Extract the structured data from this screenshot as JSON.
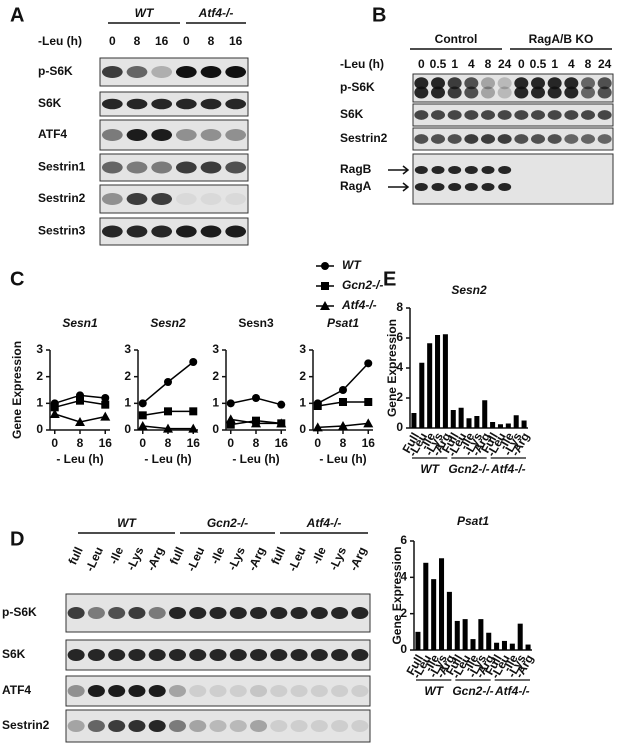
{
  "panel_labels": [
    "A",
    "B",
    "C",
    "D",
    "E"
  ],
  "blot_a": {
    "time_label": "-Leu (h)",
    "groups": [
      "WT",
      "Atf4-/-"
    ],
    "lanes": [
      "0",
      "8",
      "16",
      "0",
      "8",
      "16"
    ],
    "rows": [
      "p-S6K",
      "S6K",
      "ATF4",
      "Sestrin1",
      "Sestrin2",
      "Sestrin3"
    ]
  },
  "blot_b": {
    "time_label": "-Leu (h)",
    "groups": [
      "Control",
      "RagA/B KO"
    ],
    "lanes": [
      "0",
      "0.5",
      "1",
      "4",
      "8",
      "24",
      "0",
      "0.5",
      "1",
      "4",
      "8",
      "24"
    ],
    "rows": [
      "p-S6K",
      "S6K",
      "Sestrin2",
      "RagB",
      "RagA"
    ]
  },
  "blot_d": {
    "groups": [
      "WT",
      "Gcn2-/-",
      "Atf4-/-"
    ],
    "lanes": [
      "full",
      "-Leu",
      "-Ile",
      "-Lys",
      "-Arg",
      "full",
      "-Leu",
      "-Ile",
      "-Lys",
      "-Arg",
      "full",
      "-Leu",
      "-Ile",
      "-Lys",
      "-Arg"
    ],
    "rows": [
      "p-S6K",
      "S6K",
      "ATF4",
      "Sestrin2"
    ]
  },
  "chart_data": [
    {
      "type": "line",
      "title": "Sesn1",
      "title_italic": true,
      "y_label": "Gene Expression",
      "x_label": "- Leu (h)",
      "x": [
        0,
        8,
        16
      ],
      "xlim": [
        -1.5,
        17.5
      ],
      "xticks": [
        0,
        8,
        16
      ],
      "ylim": [
        0,
        3
      ],
      "yticks": [
        0,
        1,
        2,
        3
      ],
      "series": [
        {
          "name": "WT",
          "color": "#000000",
          "marker": "circle",
          "values": [
            1.0,
            1.3,
            1.2
          ]
        },
        {
          "name": "Gcn2-/-",
          "color": "#000000",
          "marker": "square",
          "values": [
            0.85,
            1.1,
            0.95
          ]
        },
        {
          "name": "Atf4-/-",
          "color": "#000000",
          "marker": "triangle",
          "values": [
            0.6,
            0.3,
            0.5
          ]
        }
      ]
    },
    {
      "type": "line",
      "title": "Sesn2",
      "title_italic": true,
      "x_label": "- Leu (h)",
      "x": [
        0,
        8,
        16
      ],
      "xlim": [
        -1.5,
        17.5
      ],
      "xticks": [
        0,
        8,
        16
      ],
      "ylim": [
        0,
        3
      ],
      "yticks": [
        0,
        1,
        2,
        3
      ],
      "series": [
        {
          "name": "WT",
          "color": "#000000",
          "marker": "circle",
          "values": [
            1.0,
            1.8,
            2.55
          ]
        },
        {
          "name": "Gcn2-/-",
          "color": "#000000",
          "marker": "square",
          "values": [
            0.55,
            0.7,
            0.7
          ]
        },
        {
          "name": "Atf4-/-",
          "color": "#000000",
          "marker": "triangle",
          "values": [
            0.15,
            0.05,
            0.05
          ]
        }
      ]
    },
    {
      "type": "line",
      "title": "Sesn3",
      "title_italic": false,
      "x_label": "- Leu (h)",
      "x": [
        0,
        8,
        16
      ],
      "xlim": [
        -1.5,
        17.5
      ],
      "xticks": [
        0,
        8,
        16
      ],
      "ylim": [
        0,
        3
      ],
      "yticks": [
        0,
        1,
        2,
        3
      ],
      "series": [
        {
          "name": "WT",
          "color": "#000000",
          "marker": "circle",
          "values": [
            1.0,
            1.2,
            0.95
          ]
        },
        {
          "name": "Gcn2-/-",
          "color": "#000000",
          "marker": "square",
          "values": [
            0.2,
            0.35,
            0.25
          ]
        },
        {
          "name": "Atf4-/-",
          "color": "#000000",
          "marker": "triangle",
          "values": [
            0.4,
            0.25,
            0.25
          ]
        }
      ]
    },
    {
      "type": "line",
      "title": "Psat1",
      "title_italic": true,
      "x_label": "- Leu (h)",
      "x": [
        0,
        8,
        16
      ],
      "xlim": [
        -1.5,
        17.5
      ],
      "xticks": [
        0,
        8,
        16
      ],
      "ylim": [
        0,
        3
      ],
      "yticks": [
        0,
        1,
        2,
        3
      ],
      "series": [
        {
          "name": "WT",
          "color": "#000000",
          "marker": "circle",
          "values": [
            1.0,
            1.5,
            2.5
          ]
        },
        {
          "name": "Gcn2-/-",
          "color": "#000000",
          "marker": "square",
          "values": [
            0.9,
            1.05,
            1.05
          ]
        },
        {
          "name": "Atf4-/-",
          "color": "#000000",
          "marker": "triangle",
          "values": [
            0.1,
            0.15,
            0.25
          ]
        }
      ]
    },
    {
      "type": "bar",
      "title": "Sesn2",
      "title_italic": true,
      "y_label": "Gene Expression",
      "color": "#000000",
      "categories": [
        "Full",
        "-Leu",
        "-Ile",
        "-Lys",
        "-Arg",
        "Full",
        "-Leu",
        "-Ile",
        "-Lys",
        "-Arg",
        "Full",
        "-Leu",
        "-Ile",
        "-Lys",
        "-Arg"
      ],
      "groups": [
        "WT",
        "Gcn2-/-",
        "Atf4-/-"
      ],
      "values": [
        1.0,
        4.35,
        5.65,
        6.2,
        6.25,
        1.2,
        1.35,
        0.65,
        0.8,
        1.85,
        0.4,
        0.25,
        0.3,
        0.85,
        0.5
      ],
      "ylim": [
        0,
        8
      ],
      "yticks": [
        0,
        2,
        4,
        6,
        8
      ]
    },
    {
      "type": "bar",
      "title": "Psat1",
      "title_italic": true,
      "y_label": "Gene Expression",
      "color": "#000000",
      "categories": [
        "Full",
        "-Leu",
        "-Ile",
        "-Lys",
        "-Arg",
        "Full",
        "-Leu",
        "-Ile",
        "-Lys",
        "-Arg",
        "Full",
        "-Leu",
        "-Ile",
        "-Lys",
        "-Arg"
      ],
      "groups": [
        "WT",
        "Gcn2-/-",
        "Atf4-/-"
      ],
      "values": [
        1.0,
        4.8,
        3.9,
        5.05,
        3.2,
        1.6,
        1.7,
        0.6,
        1.7,
        0.95,
        0.4,
        0.5,
        0.35,
        1.45,
        0.3
      ],
      "ylim": [
        0,
        6
      ],
      "yticks": [
        0,
        2,
        4,
        6
      ]
    }
  ]
}
